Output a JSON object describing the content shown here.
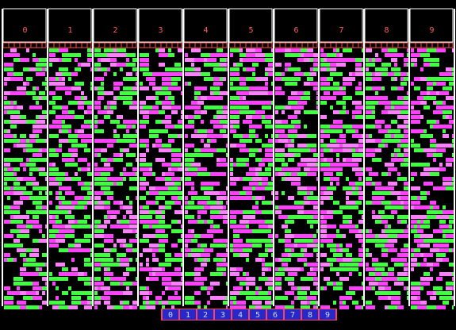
{
  "header": {
    "columns": [
      "0",
      "1",
      "2",
      "3",
      "4",
      "5",
      "6",
      "7",
      "8",
      "9"
    ]
  },
  "footer": {
    "buttons": [
      "0",
      "1",
      "2",
      "3",
      "4",
      "5",
      "6",
      "7",
      "8",
      "9"
    ]
  }
}
